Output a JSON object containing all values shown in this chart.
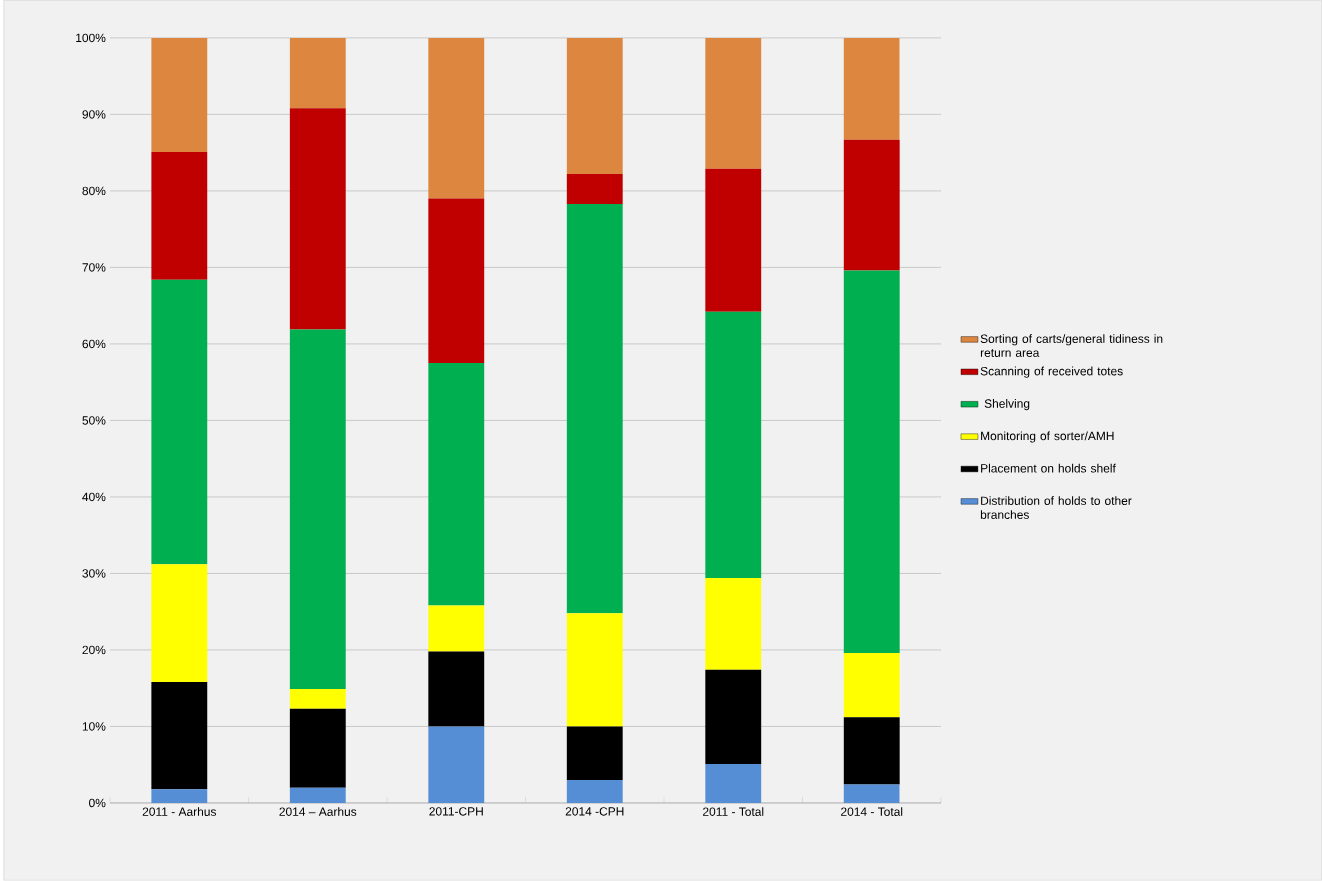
{
  "chart_data": {
    "type": "bar",
    "stacked": true,
    "categories": [
      "2011 - Aarhus",
      "2014 – Aarhus",
      "2011-CPH",
      "2014 -CPH",
      "2011 - Total",
      "2014 - Total"
    ],
    "series": [
      {
        "name": "Distribution of holds to other branches",
        "color": "#558ed5",
        "values": [
          1.8,
          2.0,
          10.0,
          3.0,
          5.1,
          2.4
        ]
      },
      {
        "name": "Placement on holds shelf",
        "color": "#000000",
        "values": [
          14.0,
          10.3,
          9.8,
          7.0,
          12.3,
          8.8
        ]
      },
      {
        "name": "Monitoring of sorter/AMH",
        "color": "#ffff00",
        "values": [
          15.4,
          2.6,
          6.0,
          14.8,
          12.0,
          8.4
        ]
      },
      {
        "name": " Shelving",
        "color": "#00b050",
        "values": [
          37.2,
          47.0,
          31.7,
          53.5,
          34.8,
          50.0
        ]
      },
      {
        "name": "Scanning of received totes",
        "color": "#c00000",
        "values": [
          16.7,
          28.9,
          21.5,
          3.9,
          18.7,
          17.1
        ]
      },
      {
        "name": "Sorting of carts/general tidiness in return area",
        "color": "#dd8640",
        "values": [
          14.9,
          9.2,
          21.0,
          17.8,
          17.1,
          13.3
        ]
      }
    ],
    "ylim": [
      0,
      100
    ],
    "yticks": [
      {
        "value": 0,
        "label": "0%"
      },
      {
        "value": 10,
        "label": "10%"
      },
      {
        "value": 20,
        "label": "20%"
      },
      {
        "value": 30,
        "label": "30%"
      },
      {
        "value": 40,
        "label": "40%"
      },
      {
        "value": 50,
        "label": "50%"
      },
      {
        "value": 60,
        "label": "60%"
      },
      {
        "value": 70,
        "label": "70%"
      },
      {
        "value": 80,
        "label": "80%"
      },
      {
        "value": 90,
        "label": "90%"
      },
      {
        "value": 100,
        "label": "100%"
      }
    ],
    "grid": "y",
    "legend": "right"
  }
}
